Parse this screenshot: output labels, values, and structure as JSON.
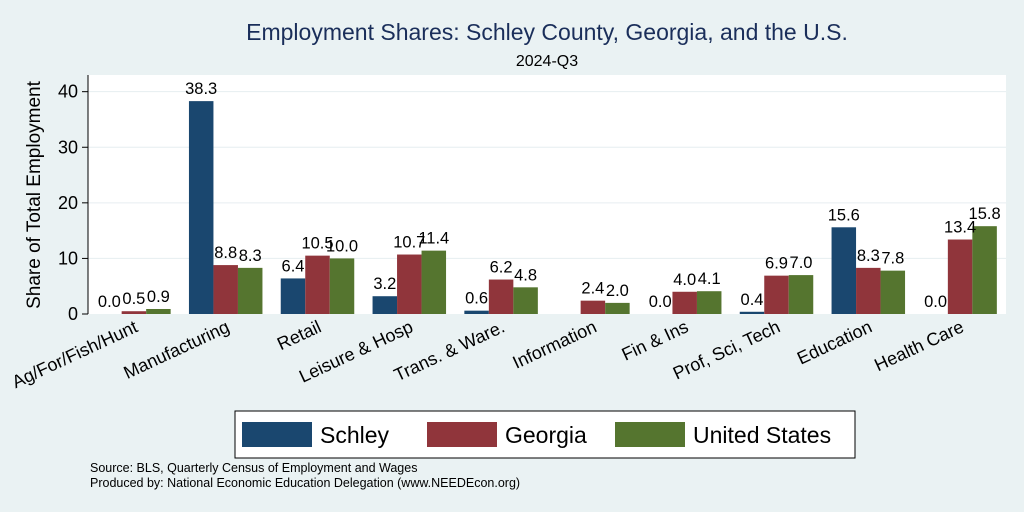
{
  "chart_data": {
    "type": "bar",
    "title": "Employment Shares: Schley County, Georgia, and the U.S.",
    "subtitle": "2024-Q3",
    "ylabel": "Share of Total Employment",
    "xlabel": "",
    "ylim": [
      0,
      43
    ],
    "yticks": [
      0,
      10,
      20,
      30,
      40
    ],
    "grid": true,
    "legend_position": "bottom",
    "categories": [
      "Ag/For/Fish/Hunt",
      "Manufacturing",
      "Retail",
      "Leisure & Hosp",
      "Trans. & Ware.",
      "Information",
      "Fin & Ins",
      "Prof, Sci, Tech",
      "Education",
      "Health Care"
    ],
    "series": [
      {
        "name": "Schley",
        "color": "#1a476f",
        "values": [
          0.0,
          38.3,
          6.4,
          3.2,
          0.6,
          null,
          0.0,
          0.4,
          15.6,
          0.0
        ],
        "labels": [
          "0.0",
          "38.3",
          "6.4",
          "3.2",
          "0.6",
          "",
          "0.0",
          "0.4",
          "15.6",
          "0.0"
        ]
      },
      {
        "name": "Georgia",
        "color": "#90353b",
        "values": [
          0.5,
          8.8,
          10.5,
          10.7,
          6.2,
          2.4,
          4.0,
          6.9,
          8.3,
          13.4
        ],
        "labels": [
          "0.5",
          "8.8",
          "10.5",
          "10.7",
          "6.2",
          "2.4",
          "4.0",
          "6.9",
          "8.3",
          "13.4"
        ]
      },
      {
        "name": "United States",
        "color": "#55752f",
        "values": [
          0.9,
          8.3,
          10.0,
          11.4,
          4.8,
          2.0,
          4.1,
          7.0,
          7.8,
          15.8
        ],
        "labels": [
          "0.9",
          "8.3",
          "10.0",
          "11.4",
          "4.8",
          "2.0",
          "4.1",
          "7.0",
          "7.8",
          "15.8"
        ]
      }
    ],
    "source_lines": [
      "Source: BLS, Quarterly Census of Employment and Wages",
      "Produced by: National Economic Education Delegation (www.NEEDEcon.org)"
    ]
  }
}
